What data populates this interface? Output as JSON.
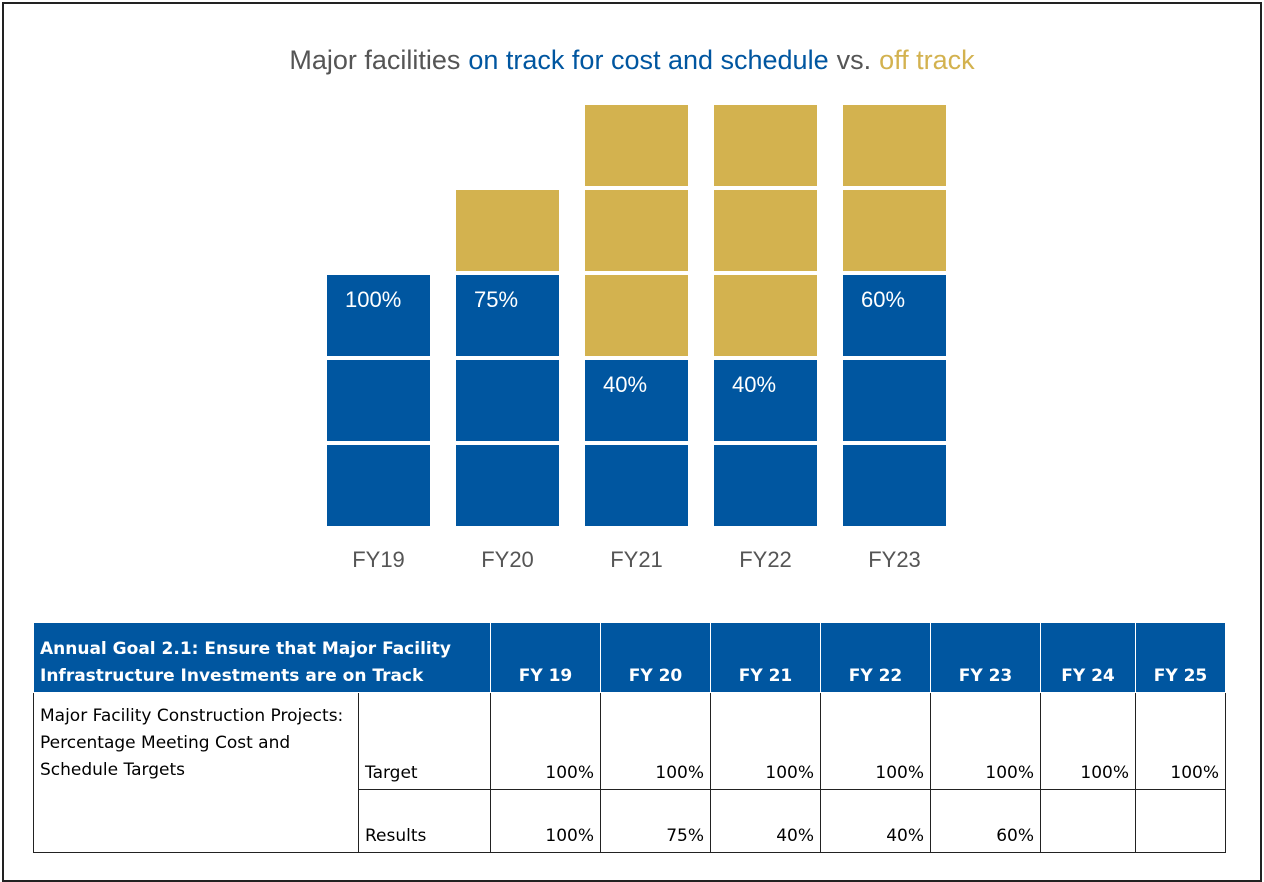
{
  "chart_data": {
    "type": "unit-stack",
    "title": [
      "Major facilities",
      "vs."
    ],
    "categories": [
      "FY19",
      "FY20",
      "FY21",
      "FY22",
      "FY23"
    ],
    "series": [
      {
        "name": "on track for cost and schedule",
        "color": "#0056a0",
        "values": [
          3,
          3,
          2,
          2,
          3
        ]
      },
      {
        "name": "off track",
        "color": "#d3b24f",
        "values": [
          0,
          1,
          3,
          3,
          2
        ]
      }
    ],
    "labels": [
      "100%",
      "75%",
      "40%",
      "40%",
      "60%"
    ]
  },
  "table": {
    "header": [
      "Annual Goal 2.1: Ensure that Major Facility Infrastructure Investments are on Track",
      "FY 19",
      "FY 20",
      "FY 21",
      "FY 22",
      "FY 23",
      "FY 24",
      "FY 25"
    ],
    "metric": "Major Facility Construction Projects: Percentage Meeting Cost and Schedule Targets",
    "rows": [
      [
        "Target",
        "100%",
        "100%",
        "100%",
        "100%",
        "100%",
        "100%",
        "100%"
      ],
      [
        "Results",
        "100%",
        "75%",
        "40%",
        "40%",
        "60%"
      ]
    ]
  }
}
